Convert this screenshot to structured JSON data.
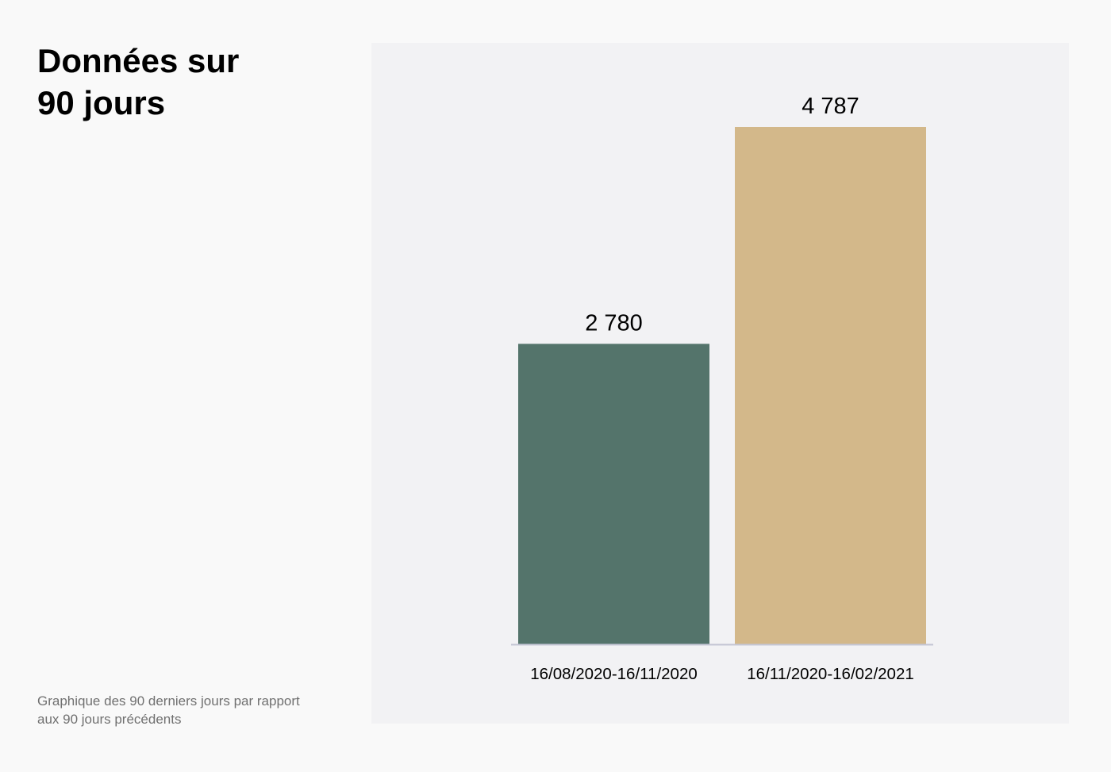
{
  "header": {
    "title_line1": "Données sur",
    "title_line2": "90 jours"
  },
  "caption": "Graphique des 90 derniers jours par rapport aux 90 jours précédents",
  "chart_data": {
    "type": "bar",
    "categories": [
      "16/08/2020-16/11/2020",
      "16/11/2020-16/02/2021"
    ],
    "values": [
      2780,
      4787
    ],
    "data_labels": [
      "2 780",
      "4 787"
    ],
    "colors": [
      "#54746b",
      "#d3b88a"
    ],
    "ylim": [
      0,
      5000
    ],
    "grid": false,
    "legend": "none",
    "xlabel": "",
    "ylabel": ""
  }
}
